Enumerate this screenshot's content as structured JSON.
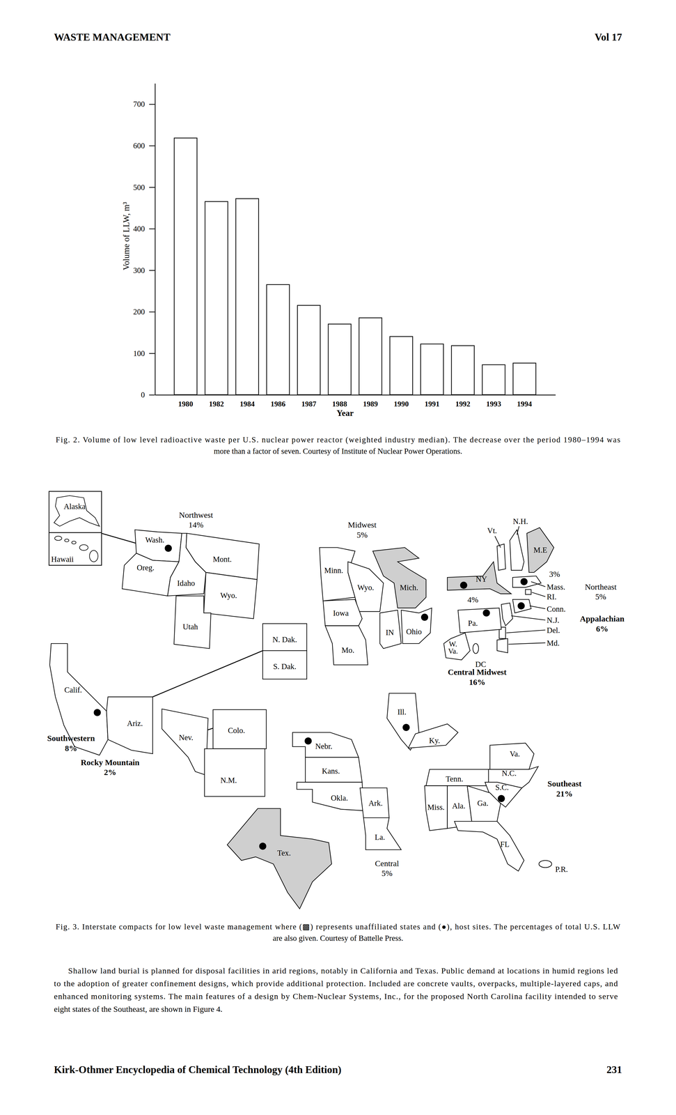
{
  "header": {
    "left": "WASTE MANAGEMENT",
    "right": "Vol 17"
  },
  "chart_data": {
    "type": "bar",
    "categories": [
      "1980",
      "1982",
      "1984",
      "1986",
      "1987",
      "1988",
      "1989",
      "1990",
      "1991",
      "1992",
      "1993",
      "1994"
    ],
    "values": [
      618,
      465,
      472,
      265,
      215,
      170,
      185,
      140,
      122,
      118,
      72,
      76
    ],
    "color": "#ffffff",
    "x_label": "Year",
    "y_label": "Volume of LLW, m³",
    "ylim": [
      0,
      750
    ],
    "yticks": [
      0,
      100,
      200,
      300,
      400,
      500,
      600,
      700
    ],
    "grid": false
  },
  "figure2_caption": [
    "Fig. 2. Volume of low level radioactive waste per U.S. nuclear power reactor (weighted industry median). The decrease over the period 1980–1994 was",
    "more than a factor of seven. Courtesy of Institute of Nuclear Power Operations."
  ],
  "map": {
    "inset": [
      "Alaska",
      "Hawaii"
    ],
    "regions": [
      {
        "name": "Northwest",
        "percent": "14%"
      },
      {
        "name": "Midwest",
        "percent": "5%"
      },
      {
        "name": "Northeast",
        "percent": "5%"
      },
      {
        "name": "Appalachian",
        "percent": "6%"
      },
      {
        "name": "Central Midwest",
        "percent": "16%"
      },
      {
        "name": "Southwestern",
        "percent": "8%"
      },
      {
        "name": "Rocky Mountain",
        "percent": "2%"
      },
      {
        "name": "Southeast",
        "percent": "21%"
      },
      {
        "name": "Central",
        "percent": "5%"
      }
    ],
    "annotations": [
      "3%",
      "4%"
    ],
    "states": [
      {
        "label": "Wash.",
        "unaffiliated": false,
        "host": true
      },
      {
        "label": "Oreg.",
        "unaffiliated": false,
        "host": false
      },
      {
        "label": "Idaho",
        "unaffiliated": false,
        "host": false
      },
      {
        "label": "Mont.",
        "unaffiliated": false,
        "host": false
      },
      {
        "label": "Wyo.",
        "unaffiliated": false,
        "host": false
      },
      {
        "label": "Utah",
        "unaffiliated": false,
        "host": false
      },
      {
        "label": "N. Dak.",
        "unaffiliated": false,
        "host": false
      },
      {
        "label": "S. Dak.",
        "unaffiliated": false,
        "host": false
      },
      {
        "label": "Calif.",
        "unaffiliated": false,
        "host": true
      },
      {
        "label": "Ariz.",
        "unaffiliated": false,
        "host": false
      },
      {
        "label": "Nev.",
        "unaffiliated": false,
        "host": false
      },
      {
        "label": "Colo.",
        "unaffiliated": false,
        "host": false
      },
      {
        "label": "N.M.",
        "unaffiliated": false,
        "host": false
      },
      {
        "label": "Minn.",
        "unaffiliated": false,
        "host": false
      },
      {
        "label": "Wyo.",
        "unaffiliated": false,
        "host": false
      },
      {
        "label": "Mich.",
        "unaffiliated": true,
        "host": false
      },
      {
        "label": "Iowa",
        "unaffiliated": false,
        "host": false
      },
      {
        "label": "Mo.",
        "unaffiliated": false,
        "host": false
      },
      {
        "label": "IN",
        "unaffiliated": false,
        "host": false
      },
      {
        "label": "Ohio",
        "unaffiliated": false,
        "host": true
      },
      {
        "label": "Vt.",
        "unaffiliated": false,
        "host": false
      },
      {
        "label": "N.H.",
        "unaffiliated": false,
        "host": false
      },
      {
        "label": "M.E",
        "unaffiliated": true,
        "host": false
      },
      {
        "label": "NY",
        "unaffiliated": true,
        "host": true
      },
      {
        "label": "Mass.",
        "unaffiliated": false,
        "host": true
      },
      {
        "label": "RI.",
        "unaffiliated": false,
        "host": false
      },
      {
        "label": "Conn.",
        "unaffiliated": false,
        "host": true
      },
      {
        "label": "N.J.",
        "unaffiliated": false,
        "host": false
      },
      {
        "label": "Del.",
        "unaffiliated": false,
        "host": false
      },
      {
        "label": "Md.",
        "unaffiliated": false,
        "host": false
      },
      {
        "label": "Pa.",
        "unaffiliated": false,
        "host": true
      },
      {
        "label": "W. Va.",
        "unaffiliated": false,
        "host": false
      },
      {
        "label": "DC",
        "unaffiliated": false,
        "host": false
      },
      {
        "label": "Ill.",
        "unaffiliated": false,
        "host": true
      },
      {
        "label": "Ky.",
        "unaffiliated": false,
        "host": false
      },
      {
        "label": "Nebr.",
        "unaffiliated": false,
        "host": true
      },
      {
        "label": "Kans.",
        "unaffiliated": false,
        "host": false
      },
      {
        "label": "Okla.",
        "unaffiliated": false,
        "host": false
      },
      {
        "label": "Ark.",
        "unaffiliated": false,
        "host": false
      },
      {
        "label": "La.",
        "unaffiliated": false,
        "host": false
      },
      {
        "label": "Tex.",
        "unaffiliated": true,
        "host": true
      },
      {
        "label": "Va.",
        "unaffiliated": false,
        "host": false
      },
      {
        "label": "Tenn.",
        "unaffiliated": false,
        "host": false
      },
      {
        "label": "N.C.",
        "unaffiliated": false,
        "host": false
      },
      {
        "label": "S.C.",
        "unaffiliated": false,
        "host": true
      },
      {
        "label": "Miss.",
        "unaffiliated": false,
        "host": false
      },
      {
        "label": "Ala.",
        "unaffiliated": false,
        "host": false
      },
      {
        "label": "Ga.",
        "unaffiliated": false,
        "host": false
      },
      {
        "label": "FL",
        "unaffiliated": false,
        "host": false
      },
      {
        "label": "P.R.",
        "unaffiliated": false,
        "host": false
      }
    ]
  },
  "figure3_caption": [
    "Fig. 3. Interstate compacts for low level waste management where (▩) represents unaffiliated states and (●), host sites. The percentages of total U.S. LLW",
    "are also given. Courtesy of Battelle Press."
  ],
  "body": [
    "Shallow land burial is planned for disposal facilities in arid regions, notably in California and Texas. Public demand at locations in humid regions led",
    "to the adoption of greater confinement designs, which provide additional protection. Included are concrete vaults, overpacks, multiple-layered caps, and",
    "enhanced monitoring systems. The main features of a design by Chem-Nuclear Systems, Inc., for the proposed North Carolina facility intended to serve",
    "eight states of the Southeast, are shown in Figure 4."
  ],
  "footer": {
    "left": "Kirk-Othmer Encyclopedia of Chemical Technology (4th Edition)",
    "right": "231"
  }
}
